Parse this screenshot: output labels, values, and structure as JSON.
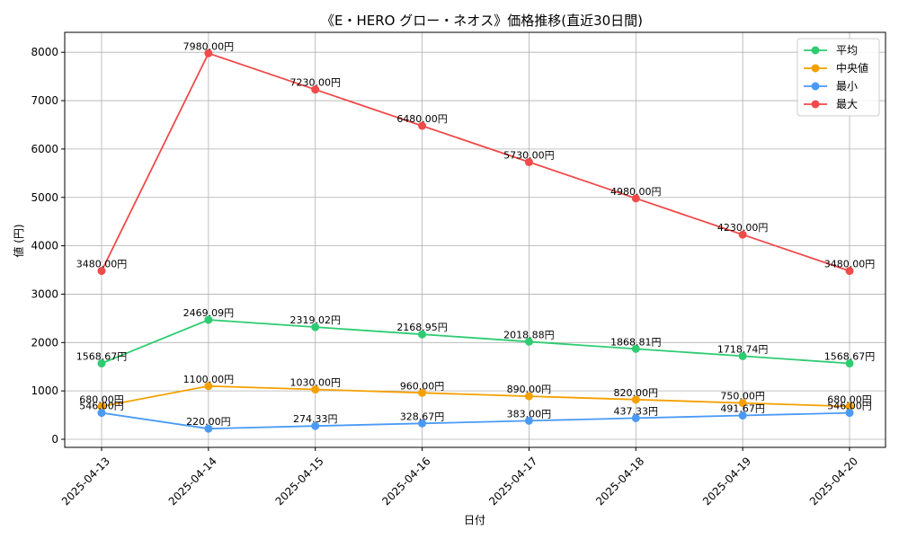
{
  "chart_data": {
    "type": "line",
    "title": "《E・HERO グロー・ネオス》価格推移(直近30日間)",
    "xlabel": "日付",
    "ylabel": "値 (円)",
    "categories": [
      "2025-04-13",
      "2025-04-14",
      "2025-04-15",
      "2025-04-16",
      "2025-04-17",
      "2025-04-18",
      "2025-04-19",
      "2025-04-20"
    ],
    "ylim": [
      -200,
      8400
    ],
    "yticks": [
      0,
      1000,
      2000,
      3000,
      4000,
      5000,
      6000,
      7000,
      8000
    ],
    "grid": true,
    "legend_position": "top-right",
    "series": [
      {
        "name": "平均",
        "color": "#2ecc71",
        "values": [
          1568.67,
          2469.09,
          2319.02,
          2168.95,
          2018.88,
          1868.81,
          1718.74,
          1568.67
        ],
        "labels": [
          "1568.67円",
          "2469.09円",
          "2319.02円",
          "2168.95円",
          "2018.88円",
          "1868.81円",
          "1718.74円",
          "1568.67円"
        ]
      },
      {
        "name": "中央値",
        "color": "#f5a000",
        "values": [
          680,
          1100,
          1030,
          960,
          890,
          820,
          750,
          680
        ],
        "labels": [
          "680.00円",
          "1100.00円",
          "1030.00円",
          "960.00円",
          "890.00円",
          "820.00円",
          "750.00円",
          "680.00円"
        ]
      },
      {
        "name": "最小",
        "color": "#4a9af5",
        "values": [
          546,
          220,
          274.33,
          328.67,
          383,
          437.33,
          491.67,
          546
        ],
        "labels": [
          "546.00円",
          "220.00円",
          "274.33円",
          "328.67円",
          "383.00円",
          "437.33円",
          "491.67円",
          "546.00円"
        ]
      },
      {
        "name": "最大",
        "color": "#f04a4a",
        "values": [
          3480,
          7980,
          7230,
          6480,
          5730,
          4980,
          4230,
          3480
        ],
        "labels": [
          "3480.00円",
          "7980.00円",
          "7230.00円",
          "6480.00円",
          "5730.00円",
          "4980.00円",
          "4230.00円",
          "3480.00円"
        ]
      }
    ]
  }
}
